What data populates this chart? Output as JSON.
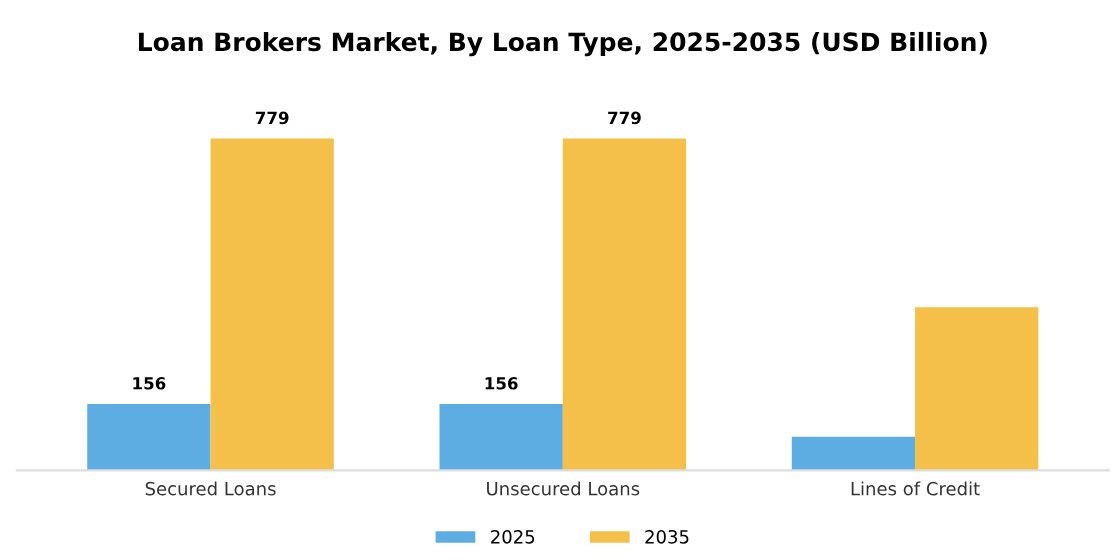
{
  "chart_data": {
    "type": "bar",
    "title": "Loan Brokers Market, By Loan Type, 2025-2035 (USD Billion)",
    "categories": [
      "Secured Loans",
      "Unsecured Loans",
      "Lines of Credit"
    ],
    "series": [
      {
        "name": "2025",
        "color": "#5dade2",
        "values": [
          156,
          156,
          79
        ],
        "value_labels": [
          "156",
          "156",
          null
        ]
      },
      {
        "name": "2035",
        "color": "#f5c04a",
        "values": [
          779,
          779,
          383
        ],
        "value_labels": [
          "779",
          "779",
          null
        ]
      }
    ],
    "legend": "bottom",
    "grid": false
  }
}
